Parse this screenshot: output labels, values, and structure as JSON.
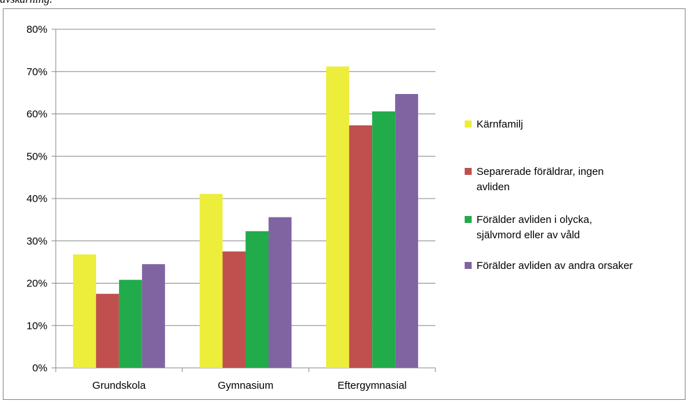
{
  "caption": "avskärning.",
  "chart_data": {
    "type": "bar",
    "categories": [
      "Grundskola",
      "Gymnasium",
      "Eftergymnasial"
    ],
    "series": [
      {
        "name": "Kärnfamilj",
        "color": "#eded3b",
        "values": [
          26.8,
          41.1,
          71.2
        ]
      },
      {
        "name": "Separerade föräldrar, ingen avliden",
        "color": "#c0504d",
        "values": [
          17.5,
          27.5,
          57.3
        ]
      },
      {
        "name": "Förälder avliden i olycka, självmord eller  av våld",
        "color": "#22ab4a",
        "values": [
          20.8,
          32.3,
          60.6
        ]
      },
      {
        "name": "Förälder avliden av andra orsaker",
        "color": "#8064a2",
        "values": [
          24.5,
          35.6,
          64.7
        ]
      }
    ],
    "legend_lines": [
      [
        "Kärnfamilj"
      ],
      [
        "Separerade föräldrar, ingen",
        "avliden"
      ],
      [
        "Förälder avliden i olycka,",
        "självmord eller  av våld"
      ],
      [
        "Förälder avliden av andra orsaker"
      ]
    ],
    "yticks": [
      "0%",
      "10%",
      "20%",
      "30%",
      "40%",
      "50%",
      "60%",
      "70%",
      "80%"
    ],
    "ylim": [
      0,
      80
    ],
    "ylabel": "",
    "xlabel": "",
    "grid": true,
    "legend_position": "right"
  }
}
